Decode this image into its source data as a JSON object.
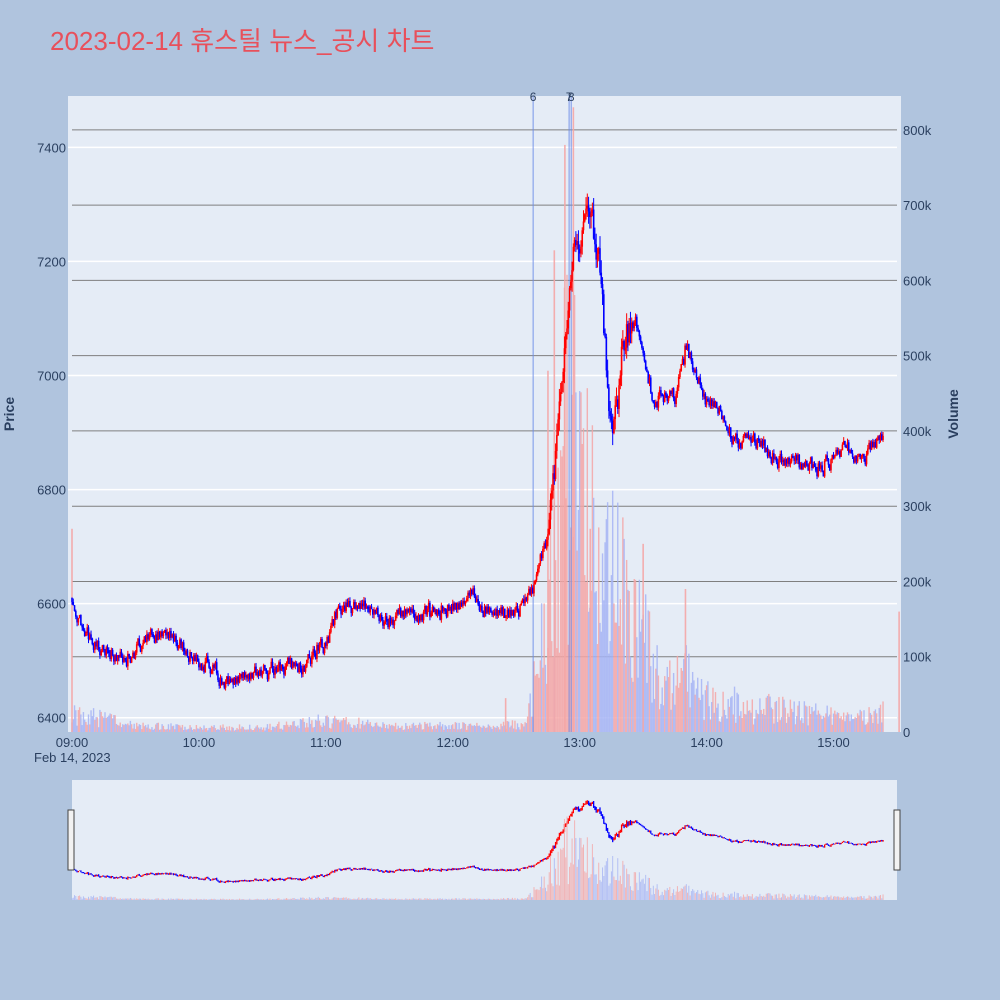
{
  "title": "2023-02-14 휴스틸 뉴스_공시 차트",
  "chart_data": {
    "type": "candlestick",
    "title": "2023-02-14 휴스틸 뉴스_공시 차트",
    "date_label": "Feb 14, 2023",
    "y_label": "Price",
    "y2_label": "Volume",
    "x_range": [
      "09:00",
      "15:30"
    ],
    "y_range": [
      6375,
      7490
    ],
    "y2_range": [
      0,
      845000
    ],
    "x_ticks": [
      "09:00",
      "10:00",
      "11:00",
      "12:00",
      "13:00",
      "14:00",
      "15:00"
    ],
    "y_ticks": [
      6400,
      6600,
      6800,
      7000,
      7200,
      7400
    ],
    "y2_ticks": [
      0,
      100000,
      200000,
      300000,
      400000,
      500000,
      600000,
      700000,
      800000
    ],
    "y2_tick_labels": [
      "0",
      "100k",
      "200k",
      "300k",
      "400k",
      "500k",
      "600k",
      "700k",
      "800k"
    ],
    "up_color": "#ff0000",
    "down_color": "#0000ff",
    "price_keypoints": [
      [
        "09:00",
        6610
      ],
      [
        "09:05",
        6560
      ],
      [
        "09:10",
        6530
      ],
      [
        "09:15",
        6520
      ],
      [
        "09:25",
        6500
      ],
      [
        "09:35",
        6540
      ],
      [
        "09:45",
        6550
      ],
      [
        "09:55",
        6510
      ],
      [
        "10:05",
        6490
      ],
      [
        "10:12",
        6460
      ],
      [
        "10:20",
        6470
      ],
      [
        "10:30",
        6480
      ],
      [
        "10:40",
        6490
      ],
      [
        "10:50",
        6490
      ],
      [
        "10:55",
        6520
      ],
      [
        "11:00",
        6530
      ],
      [
        "11:05",
        6590
      ],
      [
        "11:10",
        6600
      ],
      [
        "11:20",
        6590
      ],
      [
        "11:30",
        6570
      ],
      [
        "11:40",
        6590
      ],
      [
        "11:45",
        6580
      ],
      [
        "11:55",
        6590
      ],
      [
        "12:05",
        6600
      ],
      [
        "12:10",
        6620
      ],
      [
        "12:15",
        6590
      ],
      [
        "12:25",
        6580
      ],
      [
        "12:30",
        6590
      ],
      [
        "12:35",
        6610
      ],
      [
        "12:38",
        6630
      ],
      [
        "12:41",
        6680
      ],
      [
        "12:44",
        6700
      ],
      [
        "12:48",
        6850
      ],
      [
        "12:52",
        7000
      ],
      [
        "12:55",
        7150
      ],
      [
        "12:58",
        7240
      ],
      [
        "13:00",
        7200
      ],
      [
        "13:02",
        7260
      ],
      [
        "13:05",
        7300
      ],
      [
        "13:08",
        7220
      ],
      [
        "13:10",
        7180
      ],
      [
        "13:13",
        7000
      ],
      [
        "13:15",
        6900
      ],
      [
        "13:18",
        6950
      ],
      [
        "13:20",
        7050
      ],
      [
        "13:25",
        7100
      ],
      [
        "13:28",
        7080
      ],
      [
        "13:32",
        7000
      ],
      [
        "13:35",
        6950
      ],
      [
        "13:40",
        6970
      ],
      [
        "13:45",
        6960
      ],
      [
        "13:50",
        7050
      ],
      [
        "13:55",
        7000
      ],
      [
        "14:00",
        6950
      ],
      [
        "14:05",
        6950
      ],
      [
        "14:10",
        6900
      ],
      [
        "14:15",
        6880
      ],
      [
        "14:20",
        6900
      ],
      [
        "14:30",
        6860
      ],
      [
        "14:40",
        6850
      ],
      [
        "14:45",
        6840
      ],
      [
        "14:55",
        6840
      ],
      [
        "15:00",
        6860
      ],
      [
        "15:05",
        6880
      ],
      [
        "15:10",
        6860
      ],
      [
        "15:15",
        6860
      ],
      [
        "15:20",
        6890
      ],
      [
        "15:25",
        6900
      ]
    ],
    "volume_keypoints": [
      [
        "09:00",
        25000
      ],
      [
        "09:30",
        8000
      ],
      [
        "10:00",
        6000
      ],
      [
        "10:30",
        6000
      ],
      [
        "10:50",
        12000
      ],
      [
        "11:00",
        15000
      ],
      [
        "11:30",
        8000
      ],
      [
        "12:00",
        8000
      ],
      [
        "12:35",
        10000
      ],
      [
        "12:40",
        80000
      ],
      [
        "12:45",
        150000
      ],
      [
        "12:50",
        320000
      ],
      [
        "12:55",
        380000
      ],
      [
        "13:00",
        330000
      ],
      [
        "13:05",
        300000
      ],
      [
        "13:10",
        200000
      ],
      [
        "13:20",
        180000
      ],
      [
        "13:30",
        120000
      ],
      [
        "13:40",
        60000
      ],
      [
        "13:50",
        70000
      ],
      [
        "14:00",
        40000
      ],
      [
        "14:30",
        30000
      ],
      [
        "15:00",
        20000
      ],
      [
        "15:20",
        20000
      ],
      [
        "15:25",
        30000
      ]
    ],
    "volume_spikes": [
      [
        "09:00",
        270000
      ],
      [
        "12:25",
        45000
      ],
      [
        "12:45",
        480000
      ],
      [
        "12:48",
        640000
      ],
      [
        "12:53",
        780000
      ],
      [
        "12:57",
        830000
      ],
      [
        "13:05",
        270000
      ],
      [
        "13:30",
        250000
      ],
      [
        "13:50",
        190000
      ],
      [
        "15:31",
        160000
      ]
    ],
    "events": [
      {
        "label": "6",
        "time": "12:38"
      },
      {
        "label": "7",
        "time": "12:55"
      },
      {
        "label": "8",
        "time": "12:56"
      }
    ],
    "legend": "none"
  }
}
